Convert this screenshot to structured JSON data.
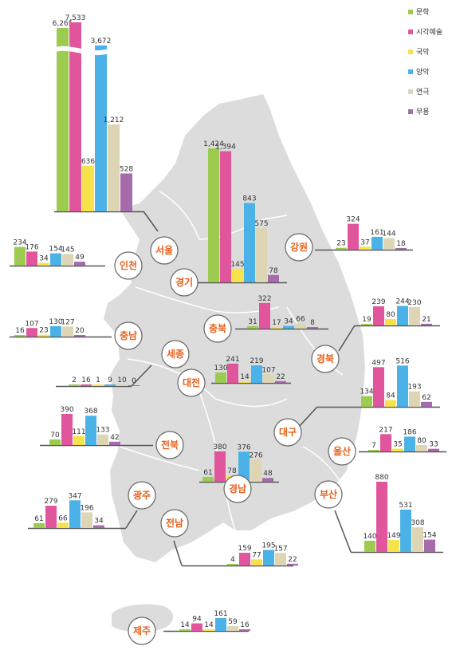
{
  "chart_data": {
    "type": "bar",
    "series_names": [
      "문학",
      "시각예술",
      "국악",
      "양악",
      "연극",
      "무용"
    ],
    "colors": {
      "문학": "#9ccb4f",
      "시각예술": "#e0559b",
      "국악": "#f6e34b",
      "양악": "#4ab2e6",
      "연극": "#ddd5b4",
      "무용": "#a56bad"
    },
    "map_color": "#dcdcdc",
    "regions": [
      {
        "name": "서울",
        "values": [
          6265,
          7533,
          636,
          3672,
          1212,
          528
        ],
        "labels": [
          "6,265",
          "7,533",
          "636",
          "3,672",
          "1,212",
          "528"
        ],
        "axis_break": true
      },
      {
        "name": "경기",
        "values": [
          1424,
          1394,
          145,
          843,
          575,
          78
        ],
        "labels": [
          "1,424",
          "1,394",
          "145",
          "843",
          "575",
          "78"
        ]
      },
      {
        "name": "인천",
        "values": [
          234,
          176,
          34,
          154,
          145,
          49
        ],
        "labels": [
          "234",
          "176",
          "34",
          "154",
          "145",
          "49"
        ]
      },
      {
        "name": "강원",
        "values": [
          23,
          324,
          37,
          161,
          144,
          18
        ],
        "labels": [
          "23",
          "324",
          "37",
          "161",
          "144",
          "18"
        ]
      },
      {
        "name": "충남",
        "values": [
          16,
          107,
          23,
          130,
          127,
          20
        ],
        "labels": [
          "16",
          "107",
          "23",
          "130",
          "127",
          "20"
        ]
      },
      {
        "name": "충북",
        "values": [
          31,
          322,
          17,
          34,
          66,
          8
        ],
        "labels": [
          "31",
          "322",
          "17",
          "34",
          "66",
          "8"
        ]
      },
      {
        "name": "세종",
        "values": [
          2,
          16,
          1,
          9,
          10,
          0
        ],
        "labels": [
          "2",
          "16",
          "1",
          "9",
          "10",
          "0"
        ]
      },
      {
        "name": "대전",
        "values": [
          130,
          241,
          14,
          219,
          107,
          22
        ],
        "labels": [
          "130",
          "241",
          "14",
          "219",
          "107",
          "22"
        ]
      },
      {
        "name": "경북",
        "values": [
          19,
          239,
          80,
          244,
          230,
          21
        ],
        "labels": [
          "19",
          "239",
          "80",
          "244",
          "230",
          "21"
        ]
      },
      {
        "name": "대구",
        "values": [
          134,
          497,
          84,
          516,
          193,
          62
        ],
        "labels": [
          "134",
          "497",
          "84",
          "516",
          "193",
          "62"
        ]
      },
      {
        "name": "전북",
        "values": [
          70,
          390,
          111,
          368,
          133,
          42
        ],
        "labels": [
          "70",
          "390",
          "111",
          "368",
          "133",
          "42"
        ]
      },
      {
        "name": "경남",
        "values": [
          61,
          380,
          78,
          376,
          276,
          48
        ],
        "labels": [
          "61",
          "380",
          "78",
          "376",
          "276",
          "48"
        ]
      },
      {
        "name": "울산",
        "values": [
          7,
          217,
          35,
          186,
          80,
          33
        ],
        "labels": [
          "7",
          "217",
          "35",
          "186",
          "80",
          "33"
        ]
      },
      {
        "name": "광주",
        "values": [
          61,
          279,
          66,
          347,
          196,
          34
        ],
        "labels": [
          "61",
          "279",
          "66",
          "347",
          "196",
          "34"
        ]
      },
      {
        "name": "부산",
        "values": [
          140,
          880,
          149,
          531,
          308,
          154
        ],
        "labels": [
          "140",
          "880",
          "149",
          "531",
          "308",
          "154"
        ]
      },
      {
        "name": "전남",
        "values": [
          4,
          159,
          77,
          195,
          157,
          22
        ],
        "labels": [
          "4",
          "159",
          "77",
          "195",
          "157",
          "22"
        ]
      },
      {
        "name": "제주",
        "values": [
          14,
          94,
          14,
          161,
          59,
          16
        ],
        "labels": [
          "14",
          "94",
          "14",
          "161",
          "59",
          "16"
        ]
      }
    ]
  }
}
